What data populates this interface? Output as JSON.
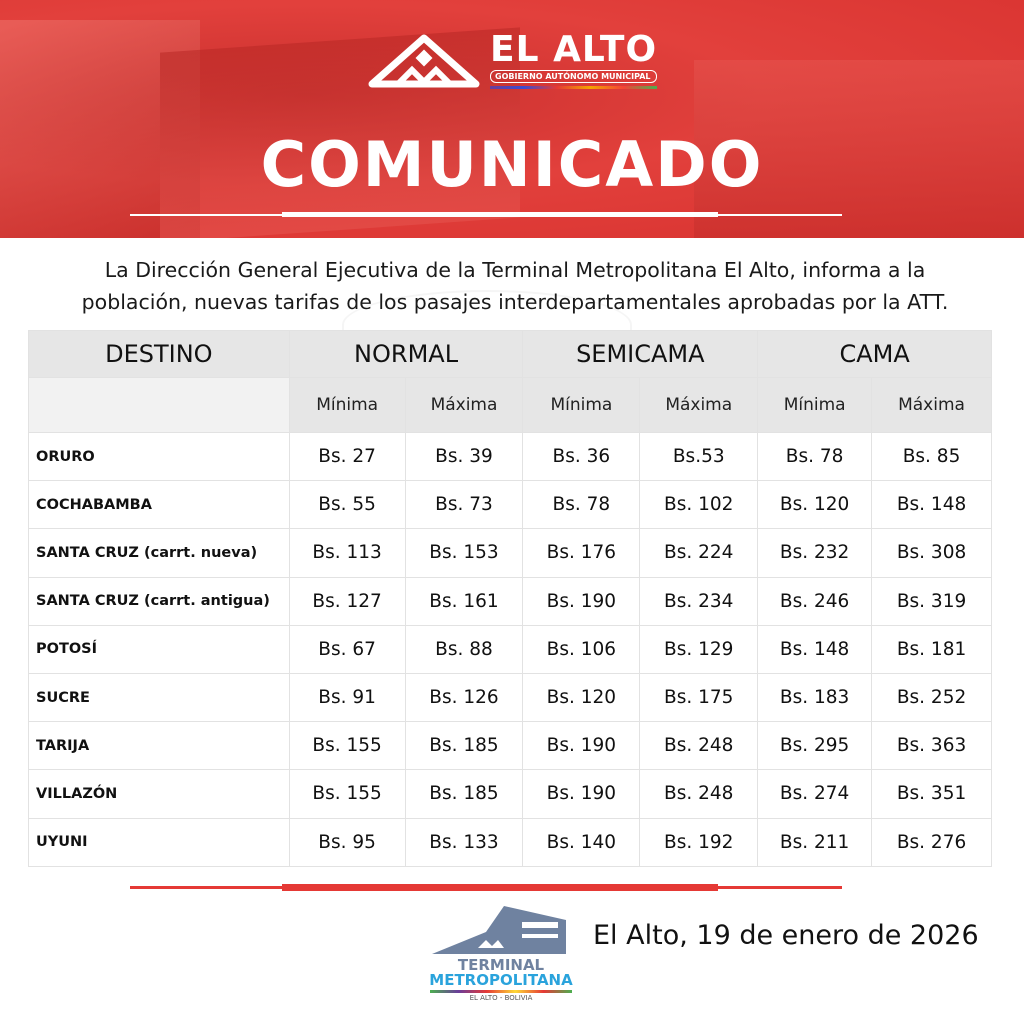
{
  "header": {
    "logo_text": "EL ALTO",
    "logo_subtitle": "GOBIERNO AUTÓNOMO MUNICIPAL",
    "title": "COMUNICADO",
    "accent_color": "#e53935"
  },
  "intro": {
    "line1": "La Dirección General Ejecutiva de la Terminal Metropolitana El Alto, informa a la",
    "line2": "población, nuevas tarifas de los pasajes interdepartamentales aprobadas por la ATT."
  },
  "table": {
    "headers": [
      "DESTINO",
      "NORMAL",
      "SEMICAMA",
      "CAMA"
    ],
    "subheaders": [
      "Mínima",
      "Máxima",
      "Mínima",
      "Máxima",
      "Mínima",
      "Máxima"
    ],
    "rows": [
      {
        "destino": "ORURO",
        "values": [
          "Bs. 27",
          "Bs. 39",
          "Bs. 36",
          "Bs.53",
          "Bs. 78",
          "Bs. 85"
        ]
      },
      {
        "destino": "COCHABAMBA",
        "values": [
          "Bs. 55",
          "Bs. 73",
          "Bs. 78",
          "Bs. 102",
          "Bs. 120",
          "Bs. 148"
        ]
      },
      {
        "destino": "SANTA CRUZ  (carrt. nueva)",
        "values": [
          "Bs. 113",
          "Bs. 153",
          "Bs. 176",
          "Bs. 224",
          "Bs. 232",
          "Bs. 308"
        ]
      },
      {
        "destino": "SANTA CRUZ (carrt. antigua)",
        "values": [
          "Bs. 127",
          "Bs. 161",
          "Bs. 190",
          "Bs. 234",
          "Bs. 246",
          "Bs. 319"
        ]
      },
      {
        "destino": "POTOSÍ",
        "values": [
          "Bs. 67",
          "Bs. 88",
          "Bs. 106",
          "Bs. 129",
          "Bs. 148",
          "Bs. 181"
        ]
      },
      {
        "destino": "SUCRE",
        "values": [
          "Bs. 91",
          "Bs. 126",
          "Bs. 120",
          "Bs. 175",
          "Bs. 183",
          "Bs. 252"
        ]
      },
      {
        "destino": "TARIJA",
        "values": [
          "Bs. 155",
          "Bs. 185",
          "Bs. 190",
          "Bs. 248",
          "Bs. 295",
          "Bs. 363"
        ]
      },
      {
        "destino": "VILLAZÓN",
        "values": [
          "Bs. 155",
          "Bs. 185",
          "Bs. 190",
          "Bs. 248",
          "Bs. 274",
          "Bs. 351"
        ]
      },
      {
        "destino": "UYUNI",
        "values": [
          "Bs. 95",
          "Bs. 133",
          "Bs. 140",
          "Bs. 192",
          "Bs. 211",
          "Bs. 276"
        ]
      }
    ]
  },
  "footer": {
    "logo_line1": "TERMINAL",
    "logo_line2": "METROPOLITANA",
    "logo_line3": "EL ALTO - BOLIVIA",
    "date": "El Alto, 19 de enero de 2026"
  }
}
